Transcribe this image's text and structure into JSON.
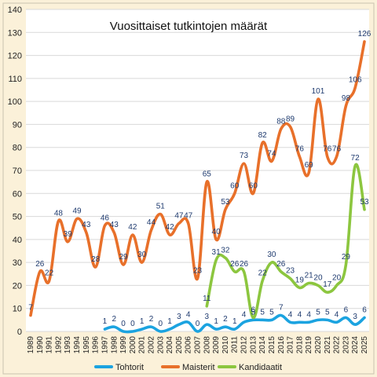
{
  "chart_data": {
    "type": "line",
    "title": "Vuosittaiset tutkintojen määrät",
    "xlabel": "",
    "ylabel": "",
    "ylim": [
      0,
      140
    ],
    "yticks": [
      0,
      10,
      20,
      30,
      40,
      50,
      60,
      70,
      80,
      90,
      100,
      110,
      120,
      130,
      140
    ],
    "grid": "horizontal",
    "legend": "bottom",
    "categories": [
      "1989",
      "1990",
      "1991",
      "1992",
      "1993",
      "1994",
      "1995",
      "1996",
      "1997",
      "1998",
      "1999",
      "2000",
      "2001",
      "2002",
      "2003",
      "2004",
      "2005",
      "2006",
      "2007",
      "2008",
      "2009",
      "2010",
      "2011",
      "2012",
      "2013",
      "2014",
      "2015",
      "2016",
      "2017",
      "2018",
      "2019",
      "2020",
      "2021",
      "2022",
      "2023",
      "2024",
      "2025"
    ],
    "series": [
      {
        "name": "Tohtorit",
        "color": "#1ba3e0",
        "values": [
          null,
          null,
          null,
          null,
          null,
          null,
          null,
          null,
          1,
          2,
          0,
          0,
          1,
          2,
          0,
          1,
          3,
          4,
          0,
          3,
          1,
          2,
          1,
          4,
          5,
          5,
          5,
          7,
          4,
          4,
          4,
          5,
          5,
          4,
          6,
          3,
          6
        ]
      },
      {
        "name": "Maisterit",
        "color": "#e8702a",
        "values": [
          7,
          26,
          22,
          48,
          39,
          49,
          43,
          28,
          46,
          43,
          29,
          42,
          30,
          44,
          51,
          42,
          47,
          47,
          23,
          65,
          40,
          53,
          60,
          73,
          60,
          82,
          74,
          88,
          89,
          76,
          69,
          101,
          76,
          76,
          98,
          106,
          126
        ]
      },
      {
        "name": "Kandidaatit",
        "color": "#8cc63f",
        "values": [
          null,
          null,
          null,
          null,
          null,
          null,
          null,
          null,
          null,
          null,
          null,
          null,
          null,
          null,
          null,
          null,
          null,
          null,
          null,
          11,
          31,
          32,
          26,
          26,
          6,
          22,
          30,
          26,
          23,
          19,
          21,
          20,
          17,
          20,
          29,
          72,
          53
        ]
      }
    ]
  }
}
